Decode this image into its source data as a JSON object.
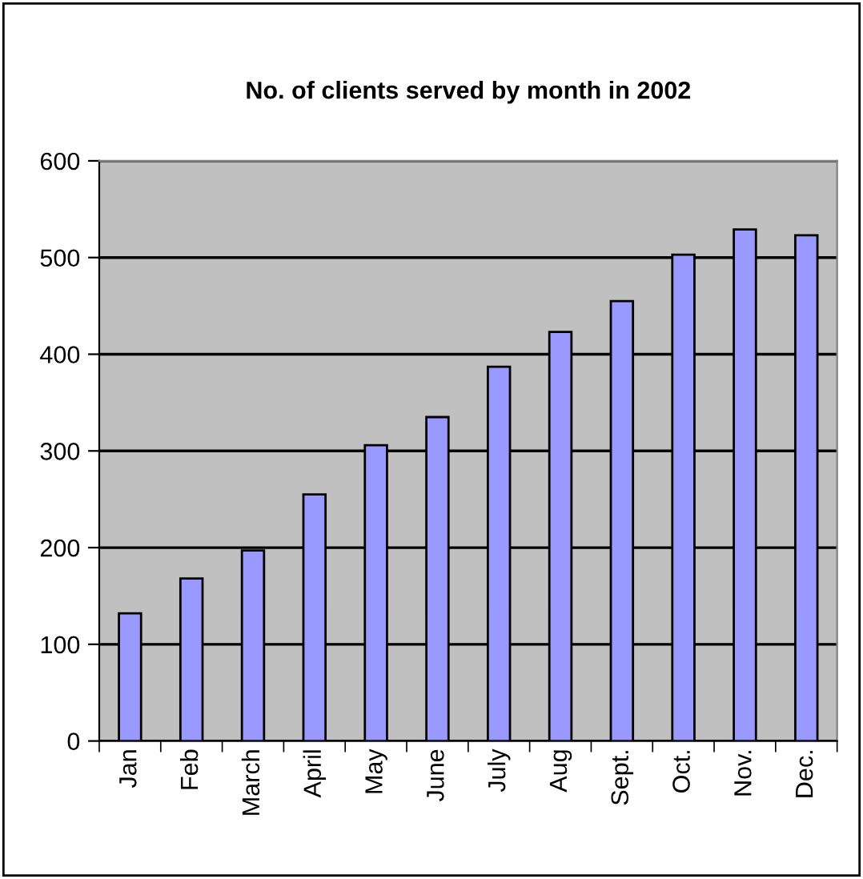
{
  "chart_data": {
    "type": "bar",
    "title": "No. of clients served by month in 2002",
    "categories": [
      "Jan",
      "Feb",
      "March",
      "April",
      "May",
      "June",
      "July",
      "Aug",
      "Sept.",
      "Oct.",
      "Nov.",
      "Dec."
    ],
    "values": [
      132,
      168,
      197,
      255,
      306,
      335,
      387,
      423,
      455,
      503,
      529,
      523
    ],
    "color": "#9999ff",
    "ylim": [
      0,
      600
    ],
    "yticks": [
      0,
      100,
      200,
      300,
      400,
      500,
      600
    ],
    "grid": "y"
  }
}
